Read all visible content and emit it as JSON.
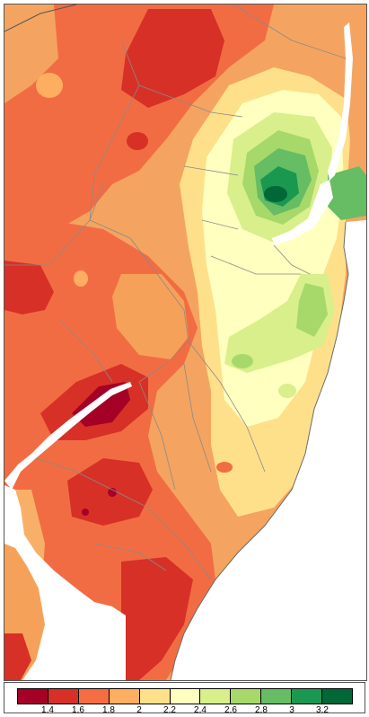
{
  "legend": {
    "colors": [
      "#a50026",
      "#d73027",
      "#f46d43",
      "#fdae61",
      "#fee08b",
      "#ffffbf",
      "#d9ef8b",
      "#a6d96a",
      "#66bd63",
      "#1a9850",
      "#006837"
    ],
    "ticks": [
      "1.4",
      "1.6",
      "1.8",
      "2",
      "2.2",
      "2.4",
      "2.6",
      "2.8",
      "3",
      "3.2"
    ]
  },
  "map": {
    "water_color": "#ffffff",
    "boundary_color": "#7a7a7a",
    "coast_color": "#6b6b6b"
  }
}
